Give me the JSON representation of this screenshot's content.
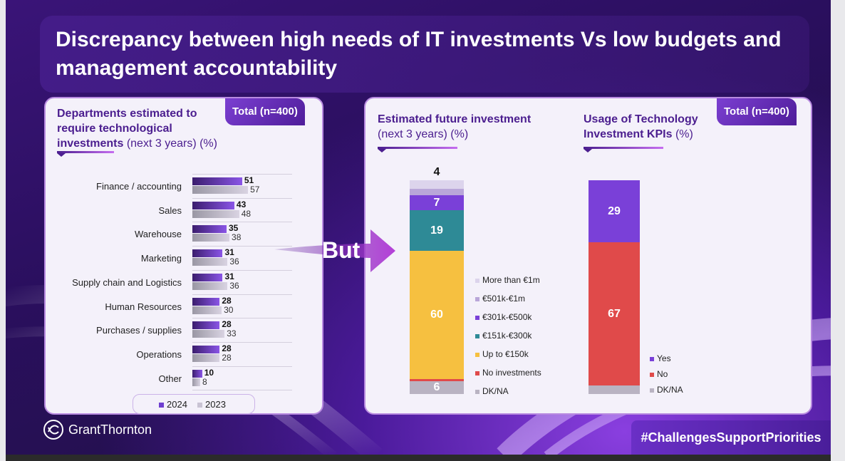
{
  "title": "Discrepancy between high needs of IT investments Vs low budgets and management accountability",
  "left_panel": {
    "badge": "Total (n=400)",
    "title_bold": "Departments estimated to require technological investments",
    "title_rest": "(next 3 years) (%)",
    "legend": [
      "2024",
      "2023"
    ]
  },
  "right_panel": {
    "badge": "Total (n=400)",
    "chart1_title": "Estimated future investment",
    "chart1_sub": "(next 3 years) (%)",
    "chart2_title": "Usage of Technology Investment KPIs",
    "chart2_sub": "(%)"
  },
  "connector_label": "But",
  "footer": {
    "logo_text": "GrantThornton",
    "hashtag": "#ChallengesSupportPriorities"
  },
  "colors": {
    "bar_2024": "#6f3fd0",
    "bar_2023": "#c9c3d4",
    "accent": "#4b1e8f"
  },
  "chart_data": [
    {
      "type": "bar",
      "orientation": "horizontal",
      "categories": [
        "Finance / accounting",
        "Sales",
        "Warehouse",
        "Marketing",
        "Supply chain and Logistics",
        "Human Resources",
        "Purchases / supplies",
        "Operations",
        "Other"
      ],
      "series": [
        {
          "name": "2024",
          "values": [
            51,
            43,
            35,
            31,
            31,
            28,
            28,
            28,
            10
          ]
        },
        {
          "name": "2023",
          "values": [
            57,
            48,
            38,
            36,
            36,
            30,
            33,
            28,
            8
          ]
        }
      ],
      "legend_position": "bottom"
    },
    {
      "type": "bar",
      "stacked": true,
      "categories": [
        "DK/NA",
        "No investments",
        "Up to €150k",
        "€151k-€300k",
        "€301k-€500k",
        "€501k-€1m",
        "More than €1m"
      ],
      "values": [
        6,
        1,
        60,
        19,
        7,
        3,
        4
      ],
      "colors": [
        "#b9b3c2",
        "#e04a4a",
        "#f6c040",
        "#2e8a96",
        "#7a40d8",
        "#b9a6d9",
        "#dcd4ec"
      ],
      "legend_position": "right"
    },
    {
      "type": "bar",
      "stacked": true,
      "categories": [
        "DK/NA",
        "No",
        "Yes"
      ],
      "values": [
        4,
        67,
        29
      ],
      "colors": [
        "#b9b3c2",
        "#e04a4a",
        "#7a40d8"
      ],
      "legend_position": "right"
    }
  ]
}
